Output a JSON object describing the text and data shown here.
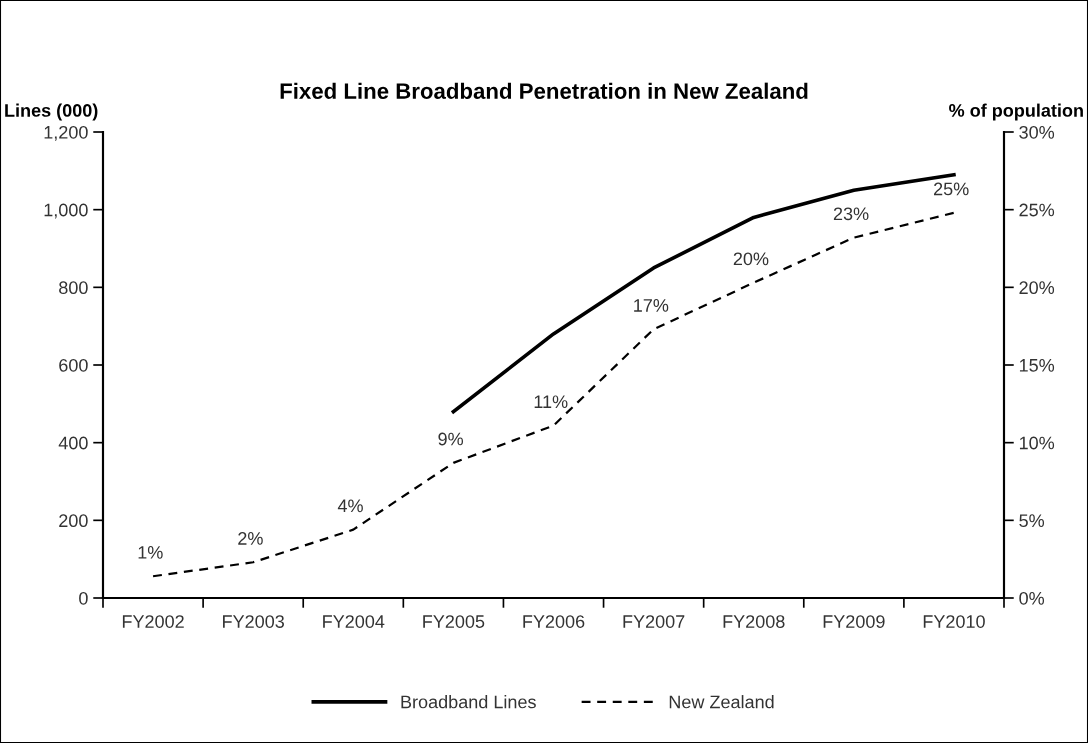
{
  "chart_data": {
    "type": "line",
    "title": "Fixed Line Broadband Penetration in New Zealand",
    "ylabel": "Lines (000)",
    "y2label": "% of population",
    "categories": [
      "FY2002",
      "FY2003",
      "FY2004",
      "FY2005",
      "FY2006",
      "FY2007",
      "FY2008",
      "FY2009",
      "FY2010"
    ],
    "series": [
      {
        "name": "Broadband Lines",
        "color": "#000000",
        "line_style": "solid",
        "values": [
          null,
          null,
          null,
          480,
          680,
          850,
          980,
          1050,
          1090
        ]
      },
      {
        "name": "New Zealand",
        "color": "#000000",
        "line_style": "dashed",
        "axis": "y2",
        "values": [
          1.4,
          2.3,
          4.4,
          8.7,
          11.1,
          17.3,
          20.3,
          23.2,
          24.8
        ],
        "value_labels": [
          "1%",
          "2%",
          "4%",
          "9%",
          "11%",
          "17%",
          "20%",
          "23%",
          "25%"
        ]
      }
    ],
    "ylim": [
      0,
      1200
    ],
    "yticks": [
      0,
      200,
      400,
      600,
      800,
      {
        "value": 1000,
        "label": "1,000"
      },
      {
        "value": 1200,
        "label": "1,200"
      }
    ],
    "y2lim": [
      0,
      30
    ],
    "y2ticks": [
      {
        "value": 0,
        "label": "0%"
      },
      {
        "value": 5,
        "label": "5%"
      },
      {
        "value": 10,
        "label": "10%"
      },
      {
        "value": 15,
        "label": "15%"
      },
      {
        "value": 20,
        "label": "20%"
      },
      {
        "value": 25,
        "label": "25%"
      },
      {
        "value": 30,
        "label": "30%"
      }
    ],
    "legend": "bottom"
  }
}
